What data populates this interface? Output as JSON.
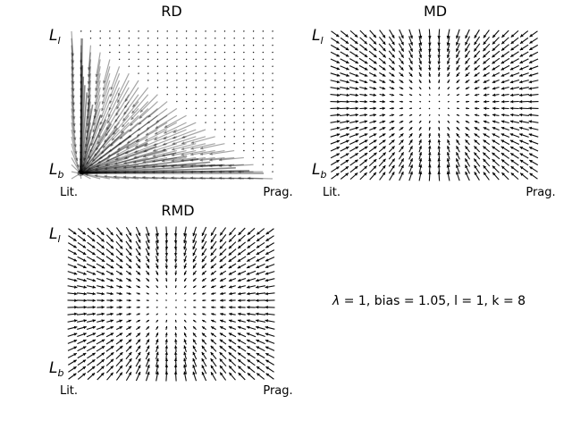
{
  "panels": [
    {
      "id": "rd",
      "title": "RD",
      "y_top_label": "L",
      "y_top_sub": "l",
      "y_bottom_label": "L",
      "y_bottom_sub": "b",
      "x_left_label": "Lit.",
      "x_right_label": "Prag.",
      "field": "replicator-triangle"
    },
    {
      "id": "md",
      "title": "MD",
      "y_top_label": "L",
      "y_top_sub": "l",
      "y_bottom_label": "L",
      "y_bottom_sub": "b",
      "x_left_label": "Lit.",
      "x_right_label": "Prag.",
      "field": "converging-grid"
    },
    {
      "id": "rmd",
      "title": "RMD",
      "y_top_label": "L",
      "y_top_sub": "l",
      "y_bottom_label": "L",
      "y_bottom_sub": "b",
      "x_left_label": "Lit.",
      "x_right_label": "Prag.",
      "field": "converging-grid"
    }
  ],
  "parameters": {
    "lambda_symbol": "λ",
    "text": " = 1, bias = 1.05, l = 1, k = 8"
  },
  "colors": {
    "arrow": "#000000",
    "background": "#ffffff"
  }
}
